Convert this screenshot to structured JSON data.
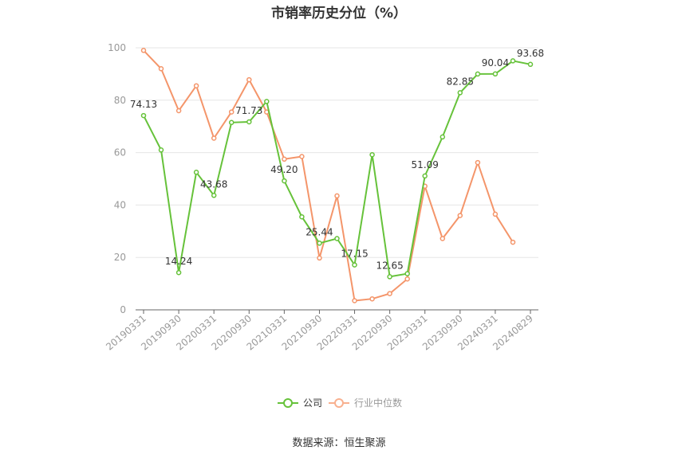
{
  "title": "市销率历史分位（%）",
  "source": "数据来源：恒生聚源",
  "legend": [
    {
      "label": "公司",
      "color": "#66c23a"
    },
    {
      "label": "行业中位数",
      "color": "#f4956a"
    }
  ],
  "chart_data": {
    "type": "line",
    "title": "市销率历史分位（%）",
    "ylim": [
      0,
      100
    ],
    "yticks": [
      0,
      20,
      40,
      60,
      80,
      100
    ],
    "grid": true,
    "legend_position": "bottom",
    "x_tick_labels": [
      "20190331",
      "20190930",
      "20200331",
      "20200930",
      "20210331",
      "20210930",
      "20220331",
      "20220930",
      "20230331",
      "20230930",
      "20240331",
      "20240829"
    ],
    "x": [
      "20190331",
      "20190630",
      "20190930",
      "20191231",
      "20200331",
      "20200630",
      "20200930",
      "20201231",
      "20210331",
      "20210630",
      "20210930",
      "20211231",
      "20220331",
      "20220630",
      "20220930",
      "20221231",
      "20230331",
      "20230630",
      "20230930",
      "20231231",
      "20240331",
      "20240630",
      "20240829"
    ],
    "series": [
      {
        "name": "公司",
        "color": "#66c23a",
        "values": [
          74.13,
          61,
          14.24,
          52.5,
          43.68,
          71.5,
          71.73,
          79.5,
          49.2,
          35.5,
          25.44,
          27.2,
          17.15,
          59.2,
          12.65,
          13.8,
          51.09,
          66,
          82.85,
          90,
          90.04,
          95,
          93.68
        ],
        "labels": {
          "0": "74.13",
          "2": "14.24",
          "4": "43.68",
          "6": "71.73",
          "8": "49.20",
          "10": "25.44",
          "12": "17.15",
          "14": "12.65",
          "16": "51.09",
          "18": "82.85",
          "20": "90.04",
          "22": "93.68"
        }
      },
      {
        "name": "行业中位数",
        "color": "#f4956a",
        "values": [
          99,
          92,
          76,
          85.5,
          65.5,
          75.5,
          87.8,
          75.5,
          57.5,
          58.5,
          19.8,
          43.5,
          3.5,
          4.2,
          6.2,
          11.8,
          47.2,
          27.2,
          36,
          56.2,
          36.5,
          25.8,
          null
        ]
      }
    ]
  }
}
